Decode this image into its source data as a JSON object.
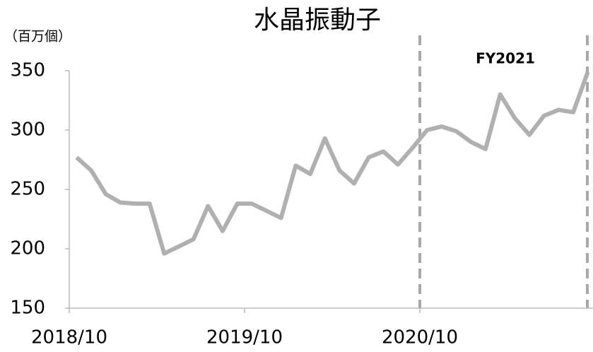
{
  "chart_data": {
    "type": "line",
    "title": "水晶振動子",
    "y_label": "（百万個）",
    "annotation": "FY2021",
    "categories": [
      "2018/10",
      null,
      null,
      null,
      null,
      null,
      null,
      null,
      null,
      null,
      null,
      null,
      "2019/10",
      null,
      null,
      null,
      null,
      null,
      null,
      null,
      null,
      null,
      null,
      null,
      "2020/10",
      null,
      null,
      null,
      null,
      null,
      null,
      null,
      null,
      null,
      null,
      null
    ],
    "series": [
      {
        "name": "水晶振動子",
        "color": "#b0b0b0",
        "values": [
          277,
          266,
          246,
          239,
          238,
          238,
          196,
          202,
          208,
          236,
          215,
          238,
          238,
          232,
          226,
          270,
          263,
          293,
          266,
          255,
          277,
          282,
          271,
          285,
          300,
          303,
          299,
          290,
          284,
          330,
          310,
          296,
          312,
          317,
          315,
          349
        ]
      }
    ],
    "ylim": [
      150,
      350
    ],
    "yticks": [
      150,
      200,
      250,
      300,
      350
    ],
    "grid": false
  }
}
